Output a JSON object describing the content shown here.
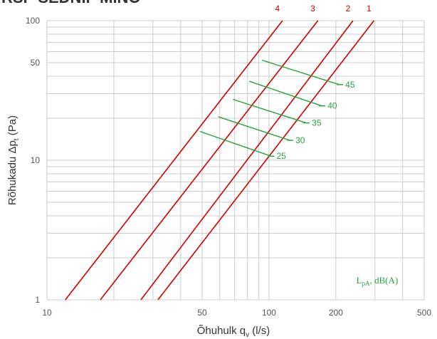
{
  "chart_data": {
    "type": "line",
    "header_fragment": "RSF-SEDNIF MINO",
    "xlabel_main": "Õhuhulk q",
    "xlabel_sub": "v",
    "xlabel_unit": " (l/s)",
    "ylabel_main": "Rõhukadu Δp",
    "ylabel_sub": "t",
    "ylabel_unit": " (Pa)",
    "x_scale": "log",
    "y_scale": "log",
    "xlim": [
      10,
      500
    ],
    "ylim": [
      1,
      100
    ],
    "x_ticks": [
      {
        "value": 10,
        "label": "10"
      },
      {
        "value": 50,
        "label": "50"
      },
      {
        "value": 100,
        "label": "100"
      },
      {
        "value": 200,
        "label": "200"
      },
      {
        "value": 500,
        "label": "500"
      }
    ],
    "y_ticks": [
      {
        "value": 1,
        "label": "1"
      },
      {
        "value": 10,
        "label": "10"
      },
      {
        "value": 50,
        "label": "50"
      },
      {
        "value": 100,
        "label": "100"
      }
    ],
    "series": [
      {
        "name": "1",
        "color": "#cc0000",
        "points": [
          [
            31.6,
            1
          ],
          [
            297,
            100
          ]
        ]
      },
      {
        "name": "2",
        "color": "#cc0000",
        "points": [
          [
            26.5,
            1
          ],
          [
            239,
            100
          ]
        ]
      },
      {
        "name": "3",
        "color": "#cc0000",
        "points": [
          [
            17.4,
            1
          ],
          [
            166,
            100
          ]
        ]
      },
      {
        "name": "4",
        "color": "#cc0000",
        "points": [
          [
            12.1,
            1
          ],
          [
            115,
            100
          ]
        ]
      }
    ],
    "sound_levels": [
      {
        "label": "25",
        "color": "#2e9e3e",
        "points": [
          [
            48.8,
            16.1
          ],
          [
            102,
            10.7
          ]
        ]
      },
      {
        "label": "30",
        "color": "#2e9e3e",
        "points": [
          [
            59.1,
            20.5
          ],
          [
            124,
            13.9
          ]
        ]
      },
      {
        "label": "35",
        "color": "#2e9e3e",
        "points": [
          [
            68.8,
            27.3
          ],
          [
            147,
            18.5
          ]
        ]
      },
      {
        "label": "40",
        "color": "#2e9e3e",
        "points": [
          [
            81.4,
            36.8
          ],
          [
            173,
            24.5
          ]
        ]
      },
      {
        "label": "45",
        "color": "#2e9e3e",
        "points": [
          [
            93.0,
            52.1
          ],
          [
            208,
            34.8
          ]
        ]
      }
    ],
    "legend_note": "LpA, dB(A)",
    "grid": true,
    "plot_border": false
  }
}
